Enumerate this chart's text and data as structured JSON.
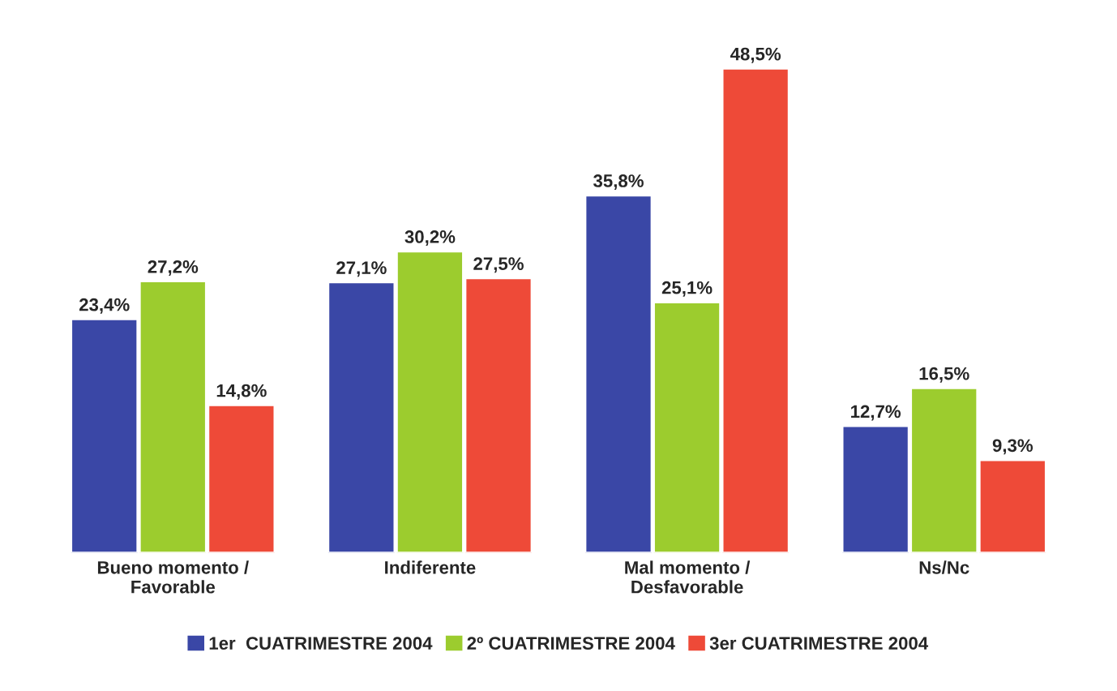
{
  "chart_data": {
    "type": "bar",
    "categories": [
      "Bueno momento /\nFavorable",
      "Indiferente",
      "Mal momento /\nDesfavorable",
      "Ns/Nc"
    ],
    "series": [
      {
        "name": "1er  CUATRIMESTRE 2004",
        "color": "#3a47a6",
        "values": [
          23.4,
          27.1,
          35.8,
          12.7
        ],
        "value_labels": [
          "23,4%",
          "27,1%",
          "35,8%",
          "12,7%"
        ]
      },
      {
        "name": "2º CUATRIMESTRE 2004",
        "color": "#9ccc2e",
        "values": [
          27.2,
          30.2,
          25.1,
          16.5
        ],
        "value_labels": [
          "27,2%",
          "30,2%",
          "25,1%",
          "16,5%"
        ]
      },
      {
        "name": "3er CUATRIMESTRE 2004",
        "color": "#ee4a38",
        "values": [
          14.8,
          27.5,
          48.5,
          9.3
        ],
        "value_labels": [
          "14,8%",
          "27,5%",
          "48,5%",
          "9,3%"
        ]
      }
    ],
    "legend": "bottom",
    "grid": false
  }
}
